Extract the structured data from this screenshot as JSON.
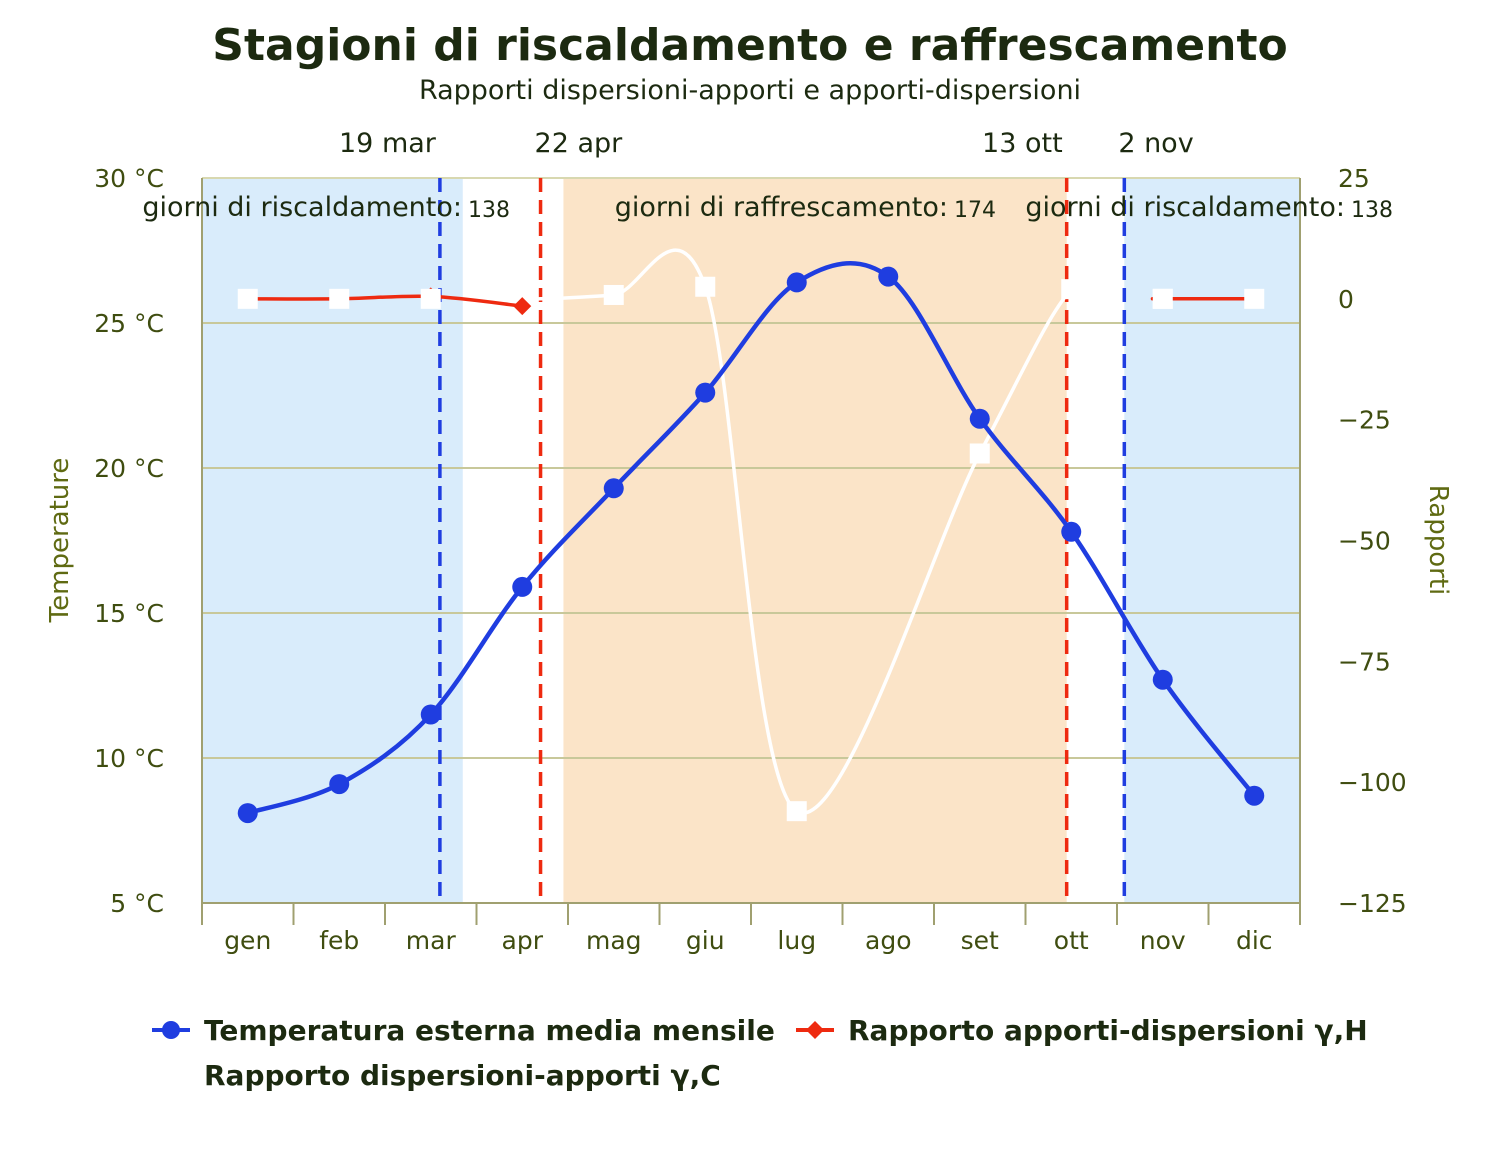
{
  "chart_data": {
    "type": "line",
    "title": "Stagioni di riscaldamento e raffrescamento",
    "subtitle": "Rapporti dispersioni-apporti e apporti-dispersioni",
    "categories": [
      "gen",
      "feb",
      "mar",
      "apr",
      "mag",
      "giu",
      "lug",
      "ago",
      "set",
      "ott",
      "nov",
      "dic"
    ],
    "y_left": {
      "title": "Temperature",
      "range": [
        5,
        30
      ],
      "ticks": [
        5,
        10,
        15,
        20,
        25,
        30
      ],
      "tick_labels": [
        "5 °C",
        "10 °C",
        "15 °C",
        "20 °C",
        "25 °C",
        "30 °C"
      ]
    },
    "y_right": {
      "title": "Rapporti",
      "range": [
        -125,
        25
      ],
      "ticks": [
        -125,
        -100,
        -75,
        -50,
        -25,
        0,
        25
      ],
      "tick_labels": [
        "−125",
        "−100",
        "−75",
        "−50",
        "−25",
        "0",
        "25"
      ]
    },
    "grid": true,
    "legend_position": "bottom",
    "series": [
      {
        "name": "Temperatura esterna media mensile",
        "axis": "left",
        "color": "#1f3de0",
        "marker": "circle",
        "values": [
          8.1,
          9.1,
          11.5,
          15.9,
          19.3,
          22.6,
          26.4,
          26.6,
          21.7,
          17.8,
          12.7,
          8.7
        ]
      },
      {
        "name": "Rapporto apporti-dispersioni γ,H",
        "axis": "right",
        "color": "#ee2a10",
        "marker": "diamond",
        "values": [
          0,
          0,
          0.5,
          -1.5,
          null,
          null,
          null,
          null,
          null,
          null,
          0,
          0
        ]
      },
      {
        "name": "Rapporto dispersioni-apporti γ,C",
        "axis": "right",
        "color": "#ffffff",
        "marker": "square",
        "values": [
          null,
          null,
          null,
          0.5,
          0.8,
          2.5,
          -106,
          null,
          -32,
          2,
          0,
          null
        ],
        "extra_points": [
          {
            "month_pos": 2.85,
            "value": 0
          },
          {
            "month_pos": 3.2,
            "value": 0
          },
          {
            "month_pos": 9.5,
            "value": 0
          },
          {
            "month_pos": 9.9,
            "value": -1
          }
        ]
      }
    ],
    "bands": [
      {
        "from": 0,
        "to": 2.85,
        "color": "#d9ecfb"
      },
      {
        "from": 3.95,
        "to": 9.45,
        "color": "#fbe4c8"
      },
      {
        "from": 10.08,
        "to": 12,
        "color": "#d9ecfb"
      }
    ],
    "markers": [
      {
        "label": "19 mar",
        "pos": 2.6,
        "color": "#1f3de0"
      },
      {
        "label": "22 apr",
        "pos": 3.7,
        "color": "#ee2a10"
      },
      {
        "label": "13 ott",
        "pos": 9.45,
        "color": "#ee2a10"
      },
      {
        "label": "2 nov",
        "pos": 10.08,
        "color": "#1f3de0"
      }
    ],
    "season_labels": [
      {
        "text": "giorni di riscaldamento:",
        "count": "138"
      },
      {
        "text": "giorni di raffrescamento:",
        "count": "174"
      },
      {
        "text": "giorni di riscaldamento:",
        "count": "138"
      }
    ]
  }
}
